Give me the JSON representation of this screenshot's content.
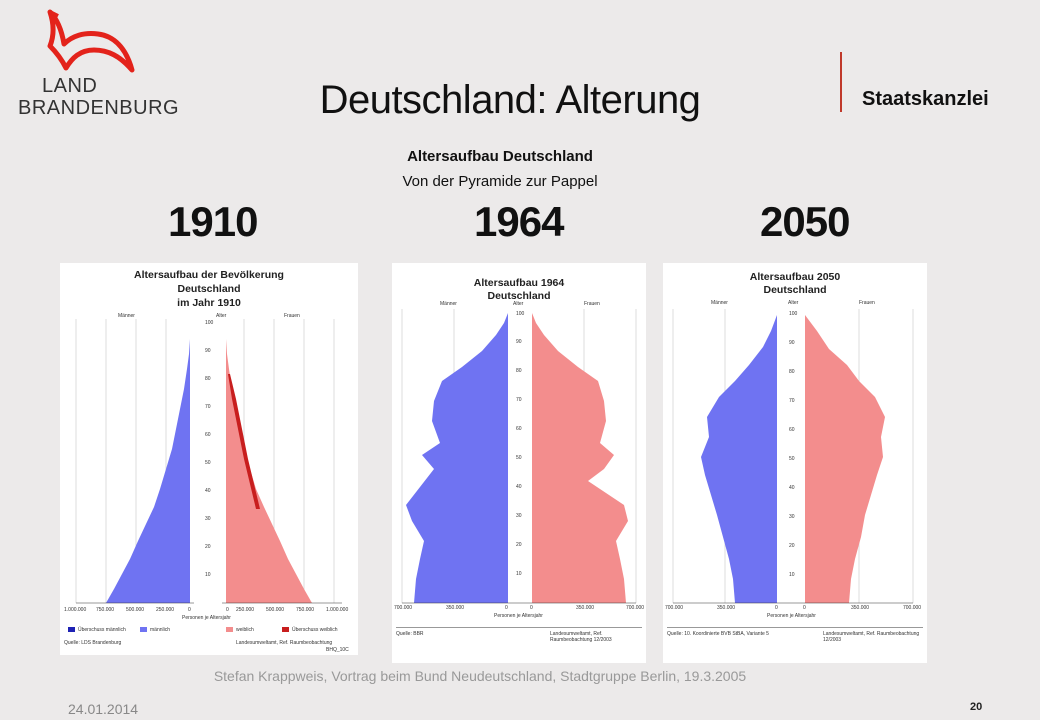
{
  "logo": {
    "line1": "LAND",
    "line2": "BRANDENBURG"
  },
  "header": {
    "title": "Deutschland: Alterung",
    "department": "Staatskanzlei"
  },
  "subtitle": {
    "line1": "Altersaufbau Deutschland",
    "line2": "Von der Pyramide zur Pappel"
  },
  "years": [
    "1910",
    "1964",
    "2050"
  ],
  "panel1910": {
    "title1": "Altersaufbau der Bevölkerung",
    "title2": "Deutschland",
    "title3": "im Jahr 1910",
    "men": "Männer",
    "age": "Alter",
    "women": "Frauen",
    "ageticks": [
      "100",
      "90",
      "80",
      "70",
      "60",
      "50",
      "40",
      "30",
      "20",
      "10"
    ],
    "xticks": [
      "1.000.000",
      "750.000",
      "500.000",
      "250.000",
      "0",
      "0",
      "250.000",
      "500.000",
      "750.000",
      "1.000.000"
    ],
    "xlabel": "Personen je Altersjahr",
    "legend": [
      "Überschuss männlich",
      "männlich",
      "weiblich",
      "Überschuss weiblich"
    ],
    "source": "Quelle: LDS Brandenburg",
    "credit": "Landesumweltamt, Ref. Raumbeobachtung",
    "code": "BHQ_10C"
  },
  "panel1964": {
    "title1": "Altersaufbau 1964",
    "title2": "Deutschland",
    "men": "Männer",
    "age": "Alter",
    "women": "Frauen",
    "ageticks": [
      "100",
      "90",
      "80",
      "70",
      "60",
      "50",
      "40",
      "30",
      "20",
      "10"
    ],
    "xticks": [
      "700.000",
      "350.000",
      "0",
      "0",
      "350.000",
      "700.000"
    ],
    "xlabel": "Personen je Altersjahr",
    "source": "Quelle: BBR",
    "credit": "Landesumweltamt, Ref. Raumbeobachtung 12/2003"
  },
  "panel2050": {
    "title1": "Altersaufbau 2050",
    "title2": "Deutschland",
    "men": "Männer",
    "age": "Alter",
    "women": "Frauen",
    "ageticks": [
      "100",
      "90",
      "80",
      "70",
      "60",
      "50",
      "40",
      "30",
      "20",
      "10"
    ],
    "xticks": [
      "700.000",
      "350.000",
      "0",
      "0",
      "350.000",
      "700.000"
    ],
    "xlabel": "Personen je Altersjahr",
    "source": "Quelle: 10. Koordinierte BVB StBA, Variante 5",
    "credit": "Landesumweltamt, Ref. Raumbeobachtung 12/2003"
  },
  "footer": {
    "text": "Stefan Krappweis, Vortrag beim Bund Neudeutschland, Stadtgruppe Berlin, 19.3.2005",
    "date": "24.01.2014",
    "page": "20"
  },
  "colors": {
    "male": "#6f73f2",
    "female": "#f38d8d",
    "surplus_female": "#c81e1e",
    "surplus_male": "#1e22b4",
    "logo_red": "#e3231b",
    "accent_line": "#c0392b"
  }
}
